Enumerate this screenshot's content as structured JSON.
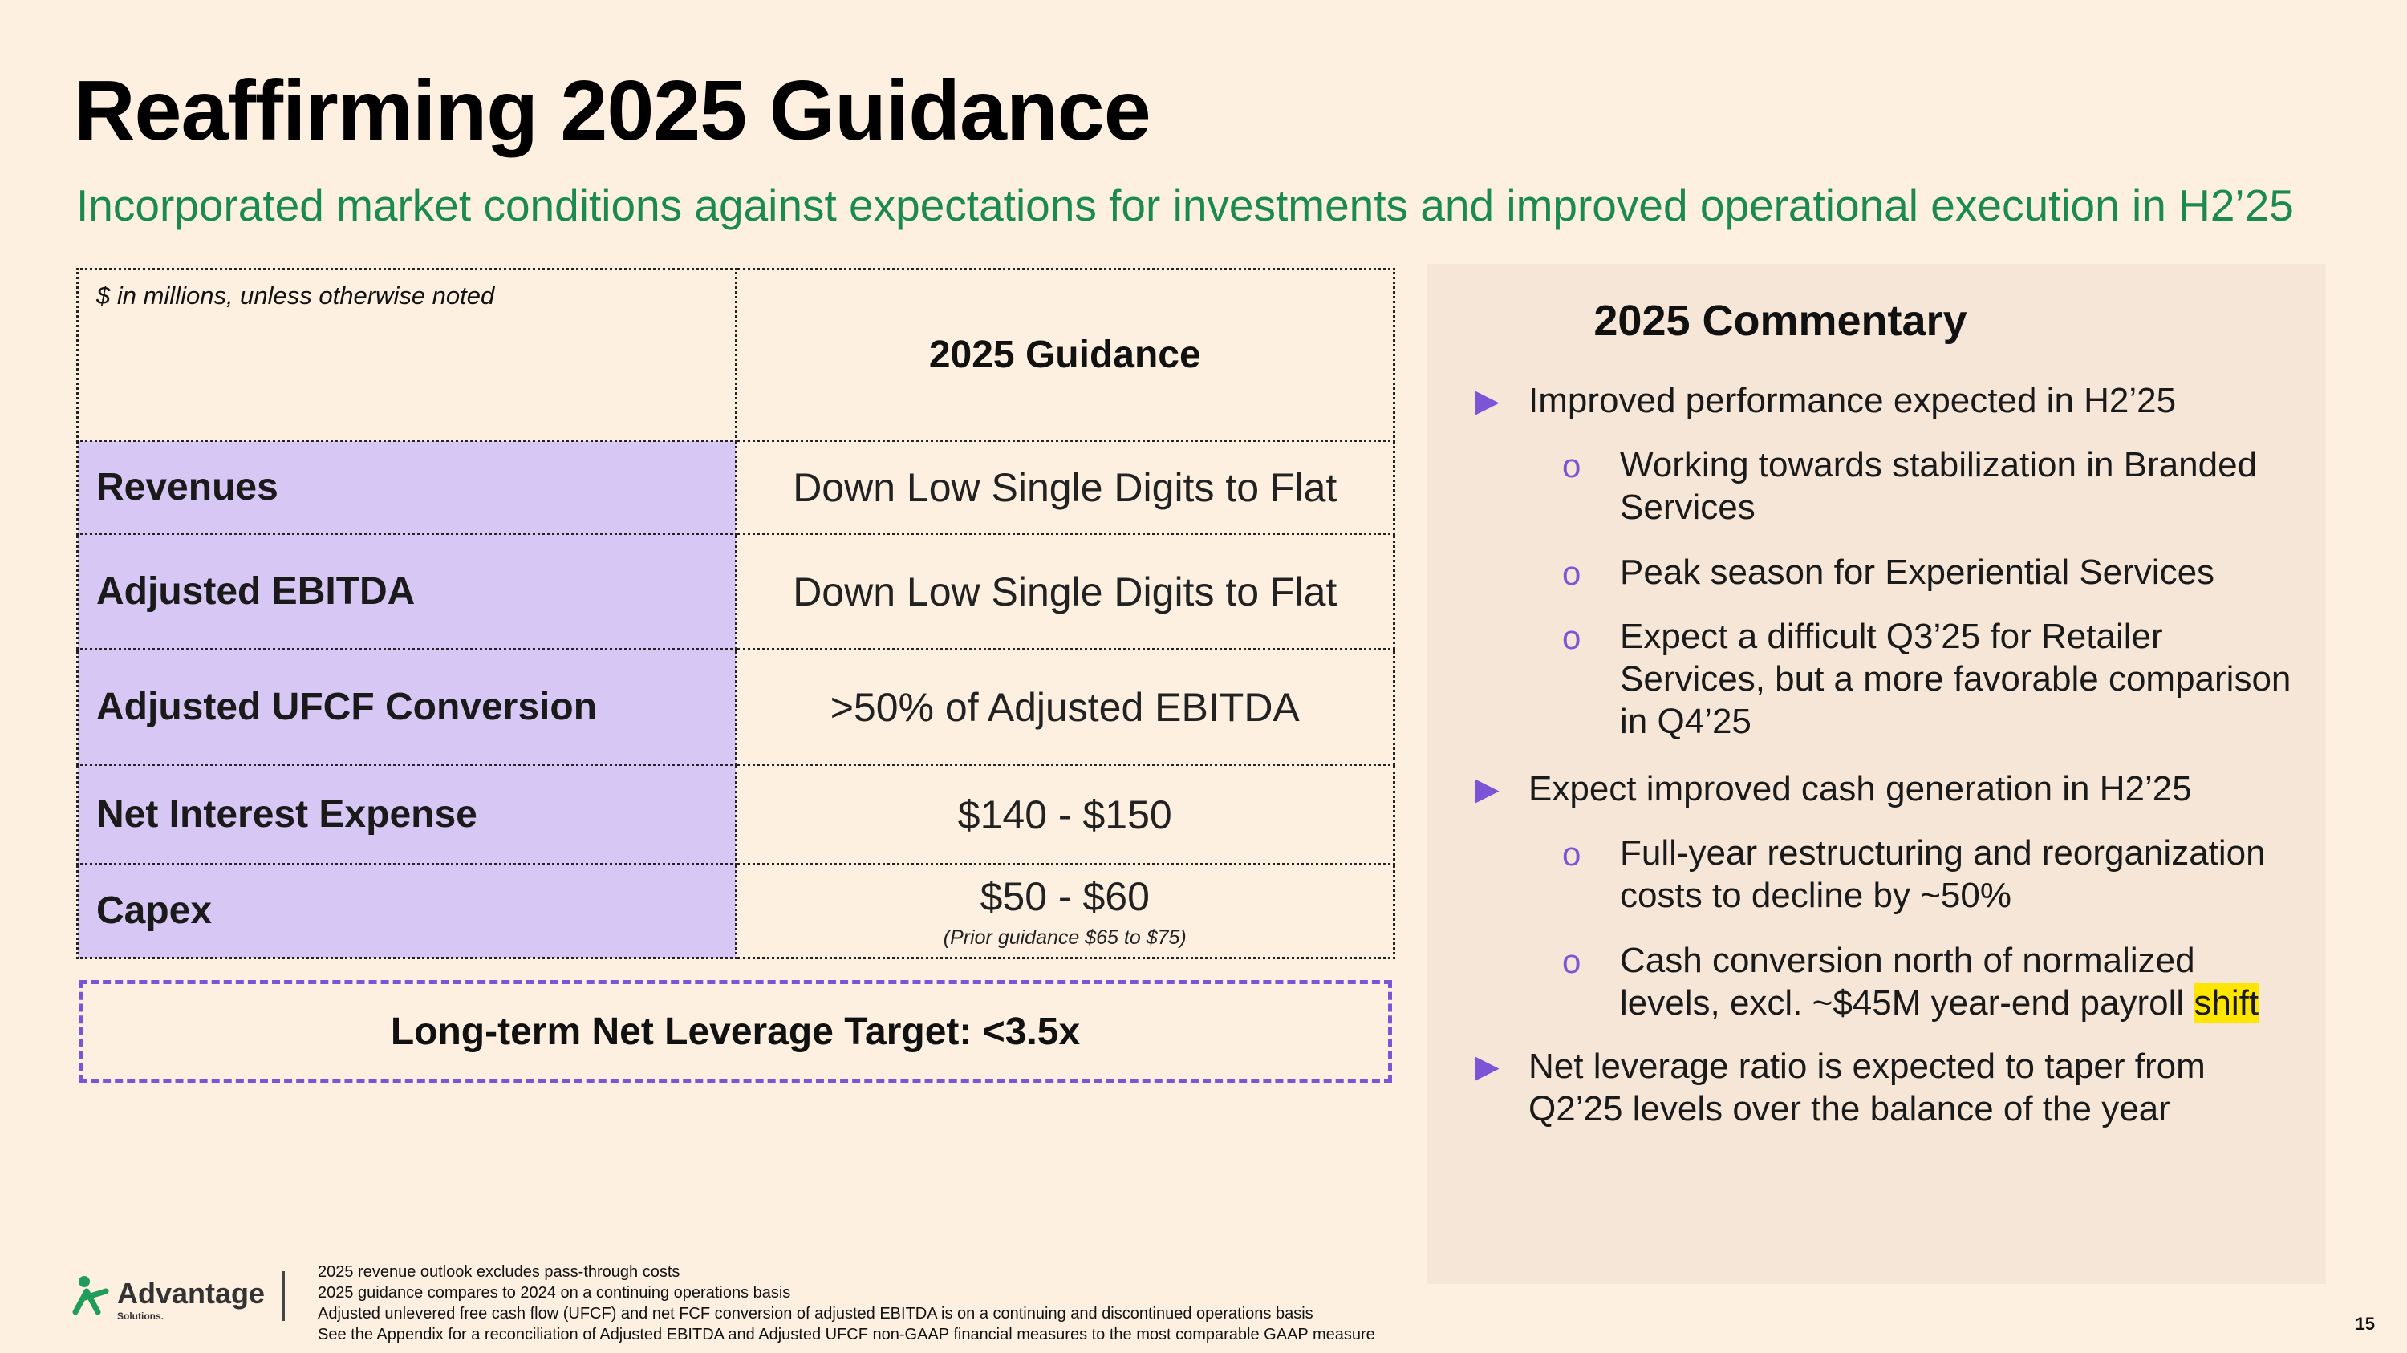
{
  "slide": {
    "title": "Reaffirming 2025 Guidance",
    "subtitle": "Incorporated market conditions against expectations for investments and improved operational execution in H2’25",
    "page_number": "15"
  },
  "guidance_table": {
    "note": "$ in millions, unless otherwise noted",
    "header": "2025 Guidance",
    "rows": [
      {
        "label": "Revenues",
        "value": "Down Low Single Digits to Flat"
      },
      {
        "label": "Adjusted EBITDA",
        "value": "Down Low Single Digits to Flat"
      },
      {
        "label": "Adjusted UFCF Conversion",
        "value": ">50% of Adjusted EBITDA"
      },
      {
        "label": "Net Interest Expense",
        "value": "$140 - $150"
      },
      {
        "label": "Capex",
        "value": "$50 - $60",
        "subnote": "(Prior guidance $65 to $75)"
      }
    ],
    "label_color": "#d7c7f5"
  },
  "leverage_target": "Long-term Net Leverage Target: <3.5x",
  "commentary": {
    "title": "2025 Commentary",
    "items": [
      {
        "level": 1,
        "marker": "triangle",
        "text": "Improved performance expected in H2’25"
      },
      {
        "level": 2,
        "marker": "circle",
        "text": "Working towards stabilization in Branded Services"
      },
      {
        "level": 2,
        "marker": "circle",
        "text": "Peak season for Experiential Services"
      },
      {
        "level": 2,
        "marker": "circle",
        "text": "Expect a difficult Q3’25 for Retailer Services, but a more favorable comparison in Q4’25"
      },
      {
        "level": 1,
        "marker": "triangle",
        "text": "Expect improved cash generation in H2’25"
      },
      {
        "level": 2,
        "marker": "circle",
        "text": "Full-year restructuring and reorganization costs to decline by ~50%"
      },
      {
        "level": 2,
        "marker": "circle",
        "text": "Cash conversion north of normalized levels, excl. ~$45M year-end payroll shift"
      },
      {
        "level": 1,
        "marker": "triangle",
        "text": "Net leverage ratio is expected to taper from Q2’25 levels over the balance of the year"
      }
    ],
    "triangle_glyph": "▶",
    "circle_glyph": "o"
  },
  "footer": {
    "logo_name": "Advantage",
    "logo_sub": "Solutions.",
    "footnotes": [
      "2025 revenue outlook excludes pass-through costs",
      "2025 guidance compares to 2024 on a continuing operations basis",
      "Adjusted unlevered free cash flow (UFCF)  and net FCF conversion of adjusted EBITDA is on a continuing and discontinued operations basis",
      "See the Appendix for a reconciliation of Adjusted EBITDA and Adjusted UFCF non-GAAP financial measures to the most comparable GAAP measure"
    ]
  },
  "colors": {
    "background": "#fdf0e1",
    "subtitle_green": "#1b8a4e",
    "accent_purple": "#7c55d6",
    "panel": "#f5e6d8",
    "logo_green": "#1e9e5a"
  }
}
